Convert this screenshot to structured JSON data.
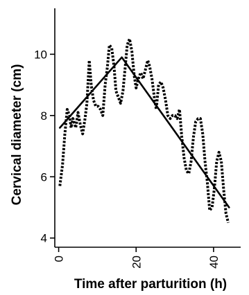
{
  "chart_data": {
    "type": "line",
    "title": "",
    "xlabel": "Time after parturition (h)",
    "ylabel": "Cervical diameter (cm)",
    "xlim": [
      -1,
      47
    ],
    "ylim": [
      3.7,
      11.5
    ],
    "x_ticks": [
      {
        "value": 0,
        "label": "0"
      },
      {
        "value": 20,
        "label": "20"
      },
      {
        "value": 40,
        "label": "40"
      }
    ],
    "y_ticks": [
      {
        "value": 4,
        "label": "4"
      },
      {
        "value": 6,
        "label": "6"
      },
      {
        "value": 8,
        "label": "8"
      },
      {
        "value": 10,
        "label": "10"
      }
    ],
    "x_tick_labels_rotated": true,
    "grid": false,
    "legend": "none",
    "series": [
      {
        "style": "dotted",
        "points": [
          [
            0.3,
            5.7
          ],
          [
            1.0,
            6.4
          ],
          [
            1.6,
            7.4
          ],
          [
            2.2,
            8.2
          ],
          [
            2.8,
            8.0
          ],
          [
            3.2,
            7.6
          ],
          [
            3.7,
            7.9
          ],
          [
            4.4,
            7.6
          ],
          [
            5.0,
            8.1
          ],
          [
            5.6,
            7.7
          ],
          [
            6.2,
            7.4
          ],
          [
            6.8,
            7.9
          ],
          [
            7.3,
            8.4
          ],
          [
            7.9,
            9.8
          ],
          [
            8.4,
            9.0
          ],
          [
            9.0,
            8.5
          ],
          [
            9.6,
            8.3
          ],
          [
            10.2,
            8.3
          ],
          [
            10.8,
            8.2
          ],
          [
            11.4,
            8.0
          ],
          [
            12.0,
            9.0
          ],
          [
            12.6,
            9.6
          ],
          [
            13.1,
            10.3
          ],
          [
            13.7,
            10.2
          ],
          [
            14.3,
            9.6
          ],
          [
            14.8,
            8.8
          ],
          [
            15.4,
            8.6
          ],
          [
            16.0,
            8.4
          ],
          [
            16.6,
            8.8
          ],
          [
            17.2,
            9.6
          ],
          [
            17.7,
            10.3
          ],
          [
            18.3,
            10.5
          ],
          [
            18.9,
            10.1
          ],
          [
            19.5,
            9.3
          ],
          [
            20.0,
            8.9
          ],
          [
            20.6,
            9.2
          ],
          [
            21.2,
            9.4
          ],
          [
            21.8,
            9.2
          ],
          [
            22.4,
            9.5
          ],
          [
            23.0,
            9.8
          ],
          [
            23.5,
            9.6
          ],
          [
            24.1,
            9.2
          ],
          [
            24.7,
            8.6
          ],
          [
            25.2,
            8.2
          ],
          [
            25.8,
            9.0
          ],
          [
            26.4,
            9.1
          ],
          [
            27.0,
            8.9
          ],
          [
            27.6,
            8.5
          ],
          [
            28.2,
            8.0
          ],
          [
            28.8,
            7.9
          ],
          [
            29.4,
            8.0
          ],
          [
            30.0,
            8.0
          ],
          [
            30.6,
            7.9
          ],
          [
            31.2,
            8.2
          ],
          [
            31.8,
            7.3
          ],
          [
            32.4,
            6.6
          ],
          [
            33.0,
            6.2
          ],
          [
            33.6,
            6.1
          ],
          [
            34.2,
            6.5
          ],
          [
            34.8,
            7.3
          ],
          [
            35.4,
            7.8
          ],
          [
            36.0,
            7.9
          ],
          [
            36.6,
            7.9
          ],
          [
            37.2,
            7.4
          ],
          [
            37.8,
            6.5
          ],
          [
            38.4,
            5.8
          ],
          [
            39.0,
            4.9
          ],
          [
            39.6,
            5.0
          ],
          [
            40.2,
            5.6
          ],
          [
            40.8,
            6.5
          ],
          [
            41.4,
            6.8
          ],
          [
            42.0,
            6.5
          ],
          [
            42.6,
            5.6
          ],
          [
            43.2,
            4.8
          ],
          [
            43.8,
            4.5
          ]
        ]
      },
      {
        "style": "solid",
        "points": [
          [
            0.3,
            7.6
          ],
          [
            16.3,
            9.9
          ],
          [
            44.0,
            5.0
          ]
        ]
      }
    ]
  }
}
